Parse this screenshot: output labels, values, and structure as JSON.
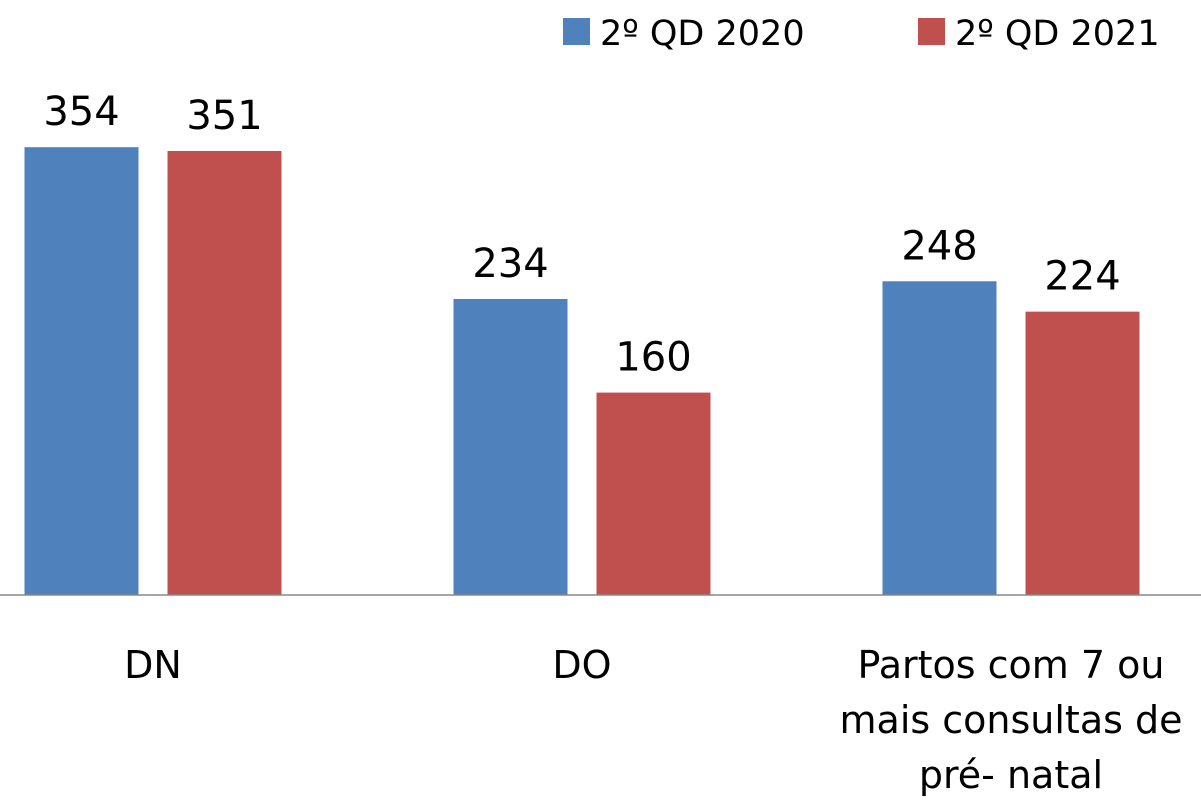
{
  "chart_data": {
    "type": "bar",
    "categories": [
      "DN",
      "DO",
      "Partos com 7 ou mais consultas de pré- natal"
    ],
    "series": [
      {
        "name": "2º QD 2020",
        "color": "#4f81bd",
        "values": [
          354,
          234,
          248
        ]
      },
      {
        "name": "2º QD 2021",
        "color": "#c0504d",
        "values": [
          351,
          160,
          224
        ]
      }
    ],
    "ylim": [
      0,
      400
    ],
    "legend": "top-right"
  }
}
